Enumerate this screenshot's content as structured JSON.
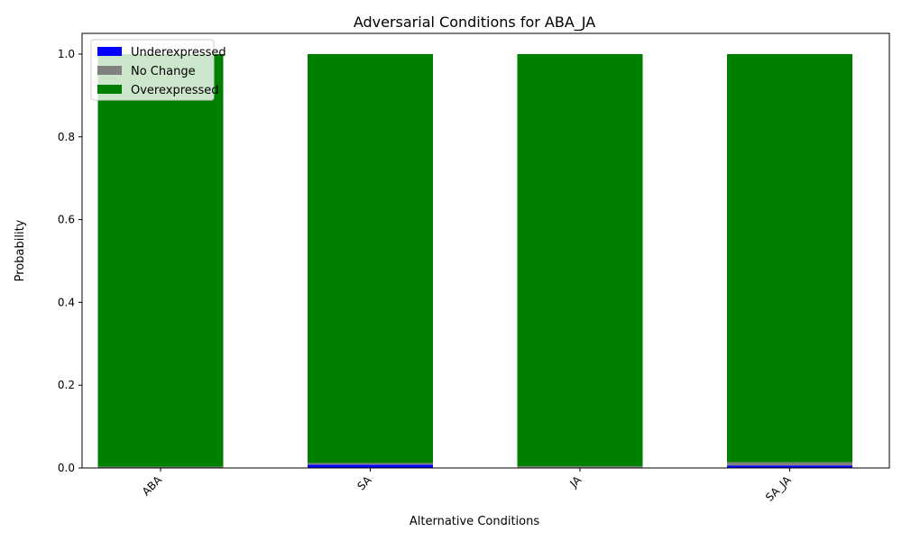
{
  "chart_data": {
    "type": "bar",
    "stacked": true,
    "title": "Adversarial Conditions for ABA_JA",
    "xlabel": "Alternative Conditions",
    "ylabel": "Probability",
    "categories": [
      "ABA",
      "SA",
      "JA",
      "SA_JA"
    ],
    "ylim": [
      0,
      1.05
    ],
    "yticks": [
      0.0,
      0.2,
      0.4,
      0.6,
      0.8,
      1.0
    ],
    "ytick_labels": [
      "0.0",
      "0.2",
      "0.4",
      "0.6",
      "0.8",
      "1.0"
    ],
    "grid": false,
    "legend_position": "top-left",
    "series": [
      {
        "name": "Underexpressed",
        "color": "#0000ff",
        "values": [
          0.001,
          0.008,
          0.001,
          0.006
        ]
      },
      {
        "name": "No Change",
        "color": "#808080",
        "values": [
          0.002,
          0.004,
          0.003,
          0.008
        ]
      },
      {
        "name": "Overexpressed",
        "color": "#008000",
        "values": [
          0.997,
          0.988,
          0.996,
          0.986
        ]
      }
    ]
  }
}
